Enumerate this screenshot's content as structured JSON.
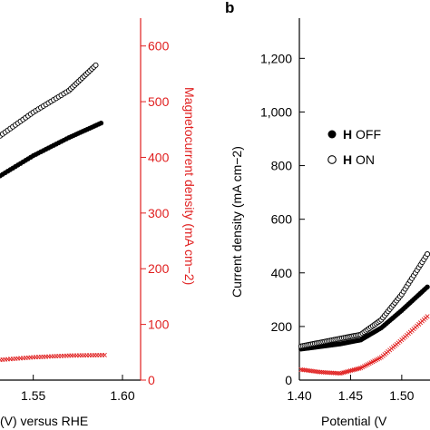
{
  "panel_b_label": "b",
  "colors": {
    "red": "#e01f1f",
    "black": "#000000"
  },
  "chart_data": [
    {
      "panel": "a",
      "type": "scatter",
      "xlabel": "(V) versus RHE",
      "ylabel": "",
      "y2label": "Magnetocurrent density (mA cm−2)",
      "xlim": [
        1.45,
        1.6
      ],
      "ylim_right": [
        0,
        650
      ],
      "x_ticks": [
        "1.55",
        "1.60"
      ],
      "y2_ticks": [
        "0",
        "100",
        "200",
        "300",
        "400",
        "500",
        "600"
      ],
      "series": [
        {
          "marker": "open-circle",
          "color": "#000000",
          "axis": "left",
          "x": [
            1.45,
            1.47,
            1.49,
            1.51,
            1.53,
            1.55,
            1.57,
            1.585
          ],
          "y_frac": [
            0.38,
            0.45,
            0.53,
            0.6,
            0.67,
            0.74,
            0.8,
            0.87
          ]
        },
        {
          "marker": "filled-circle",
          "color": "#000000",
          "axis": "left",
          "x": [
            1.45,
            1.47,
            1.49,
            1.51,
            1.53,
            1.55,
            1.57,
            1.588
          ],
          "y_frac": [
            0.32,
            0.38,
            0.44,
            0.5,
            0.56,
            0.62,
            0.67,
            0.71
          ]
        },
        {
          "marker": "cross",
          "color": "#e01f1f",
          "axis": "right",
          "x": [
            1.45,
            1.47,
            1.49,
            1.51,
            1.53,
            1.55,
            1.57,
            1.59
          ],
          "y": [
            0,
            12,
            22,
            30,
            36,
            41,
            44,
            45
          ]
        }
      ]
    },
    {
      "panel": "b",
      "type": "scatter",
      "xlabel": "Potential (V",
      "ylabel": "Current density (mA cm−2)",
      "xlim": [
        1.4,
        1.54
      ],
      "ylim": [
        0,
        1350
      ],
      "x_ticks": [
        "1.40",
        "1.45",
        "1.50"
      ],
      "y_ticks": [
        "0",
        "200",
        "400",
        "600",
        "800",
        "1,000",
        "1,200"
      ],
      "legend": [
        {
          "bold": "H",
          "label": "OFF",
          "marker": "filled-circle"
        },
        {
          "bold": "H",
          "label": "ON",
          "marker": "open-circle"
        }
      ],
      "series": [
        {
          "label": "H OFF",
          "marker": "filled-circle",
          "color": "#000000",
          "x": [
            1.4,
            1.42,
            1.44,
            1.46,
            1.48,
            1.5,
            1.52,
            1.54
          ],
          "y": [
            115,
            125,
            135,
            150,
            195,
            260,
            330,
            400
          ]
        },
        {
          "label": "H ON",
          "marker": "open-circle",
          "color": "#000000",
          "x": [
            1.4,
            1.42,
            1.44,
            1.46,
            1.48,
            1.5,
            1.52,
            1.54
          ],
          "y": [
            125,
            140,
            155,
            170,
            225,
            320,
            440,
            560
          ]
        },
        {
          "marker": "cross",
          "color": "#e01f1f",
          "x": [
            1.4,
            1.42,
            1.44,
            1.46,
            1.48,
            1.5,
            1.52,
            1.54
          ],
          "y": [
            40,
            30,
            25,
            45,
            85,
            150,
            220,
            290
          ]
        }
      ]
    }
  ]
}
